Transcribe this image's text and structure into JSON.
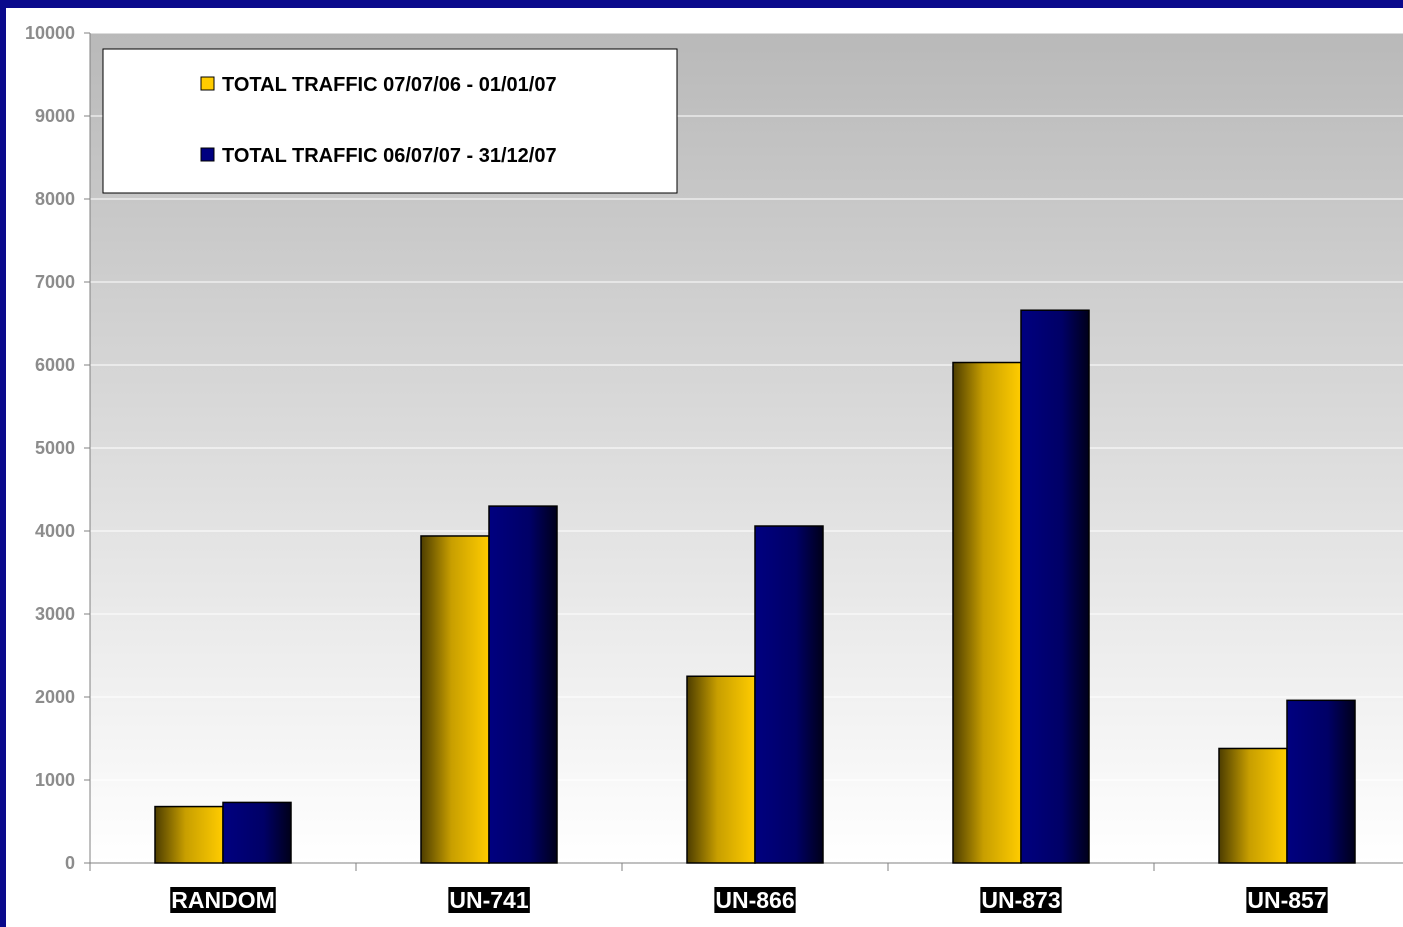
{
  "chart_data": {
    "type": "bar",
    "categories": [
      "RANDOM",
      "UN-741",
      "UN-866",
      "UN-873",
      "UN-857"
    ],
    "series": [
      {
        "name": "TOTAL TRAFFIC 07/07/06 - 01/01/07",
        "values": [
          680,
          3940,
          2250,
          6030,
          1380
        ]
      },
      {
        "name": "TOTAL TRAFFIC 06/07/07 - 31/12/07",
        "values": [
          730,
          4300,
          4060,
          6660,
          1960
        ]
      }
    ],
    "ylim": [
      0,
      10000
    ],
    "yticks": [
      0,
      1000,
      2000,
      3000,
      4000,
      5000,
      6000,
      7000,
      8000,
      9000,
      10000
    ],
    "grid": true,
    "legend_position": "top-left",
    "title": "",
    "xlabel": "",
    "ylabel": ""
  },
  "colors": {
    "frame": "#0a0a8c",
    "series_1": "#ffcc00",
    "series_2": "#000080",
    "tick_label": "#8c8c8c"
  }
}
